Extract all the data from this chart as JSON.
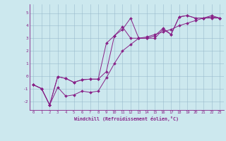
{
  "xlabel": "Windchill (Refroidissement éolien,°C)",
  "bg_color": "#cce8ee",
  "line_color": "#882288",
  "xlim": [
    -0.5,
    23.5
  ],
  "ylim": [
    -2.7,
    5.7
  ],
  "yticks": [
    -2,
    -1,
    0,
    1,
    2,
    3,
    4,
    5
  ],
  "xticks": [
    0,
    1,
    2,
    3,
    4,
    5,
    6,
    7,
    8,
    9,
    10,
    11,
    12,
    13,
    14,
    15,
    16,
    17,
    18,
    19,
    20,
    21,
    22,
    23
  ],
  "line1_x": [
    0,
    1,
    2,
    3,
    4,
    5,
    6,
    7,
    8,
    9,
    10,
    11,
    12,
    13,
    14,
    15,
    16,
    17,
    18,
    19,
    20,
    21,
    22,
    23
  ],
  "line1_y": [
    -0.7,
    -1.0,
    -2.3,
    -0.05,
    -0.2,
    -0.5,
    -0.3,
    -0.25,
    -0.25,
    0.35,
    3.2,
    3.7,
    4.6,
    3.0,
    3.0,
    3.0,
    3.7,
    3.3,
    4.7,
    4.8,
    4.6,
    4.6,
    4.6,
    4.6
  ],
  "line2_x": [
    0,
    1,
    2,
    3,
    4,
    5,
    6,
    7,
    8,
    9,
    10,
    11,
    12,
    13,
    14,
    15,
    16,
    17,
    18,
    19,
    20,
    21,
    22,
    23
  ],
  "line2_y": [
    -0.7,
    -1.0,
    -2.3,
    -0.05,
    -0.2,
    -0.5,
    -0.3,
    -0.25,
    -0.25,
    2.6,
    3.2,
    3.9,
    3.0,
    3.0,
    3.0,
    3.2,
    3.8,
    3.3,
    4.7,
    4.8,
    4.6,
    4.6,
    4.8,
    4.6
  ],
  "line3_x": [
    0,
    1,
    2,
    3,
    4,
    5,
    6,
    7,
    8,
    9,
    10,
    11,
    12,
    13,
    14,
    15,
    16,
    17,
    18,
    19,
    20,
    21,
    22,
    23
  ],
  "line3_y": [
    -0.7,
    -1.0,
    -2.3,
    -0.9,
    -1.6,
    -1.5,
    -1.2,
    -1.3,
    -1.2,
    -0.15,
    1.0,
    2.0,
    2.5,
    3.0,
    3.1,
    3.3,
    3.5,
    3.7,
    4.0,
    4.2,
    4.4,
    4.6,
    4.7,
    4.6
  ]
}
